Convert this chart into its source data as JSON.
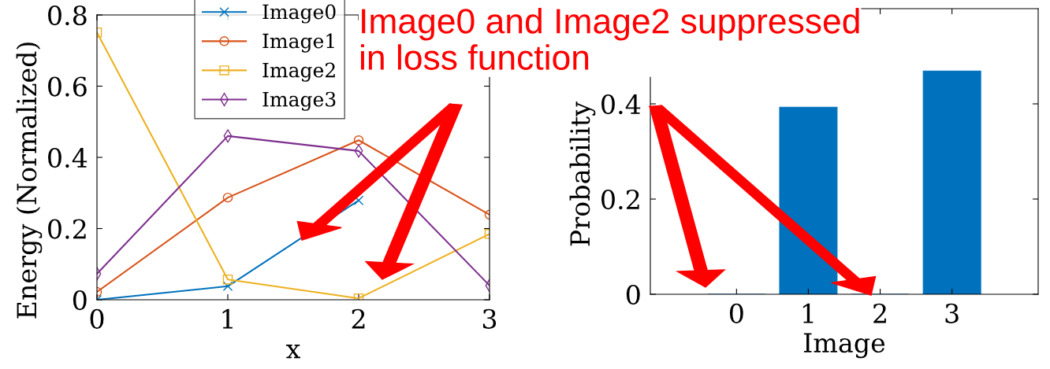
{
  "chart_data": [
    {
      "type": "line",
      "xlabel": "x",
      "ylabel": "Energy (Normalized)",
      "x": [
        0,
        1,
        2,
        3
      ],
      "xlim": [
        0,
        3
      ],
      "xticks": [
        0,
        1,
        2,
        3
      ],
      "ylim": [
        0,
        0.8
      ],
      "yticks": [
        0,
        0.2,
        0.4,
        0.6,
        0.8
      ],
      "legend": "top",
      "grid": false,
      "annotations": [
        "Image0 and Image2 suppressed\nin loss function"
      ],
      "series": [
        {
          "name": "Image0",
          "color": "#0072bd",
          "marker": "cross",
          "values": [
            0,
            0.038,
            0.279,
            null
          ]
        },
        {
          "name": "Image1",
          "color": "#d95319",
          "marker": "circle",
          "values": [
            0.022,
            0.287,
            0.448,
            0.239
          ]
        },
        {
          "name": "Image2",
          "color": "#edb120",
          "marker": "square",
          "values": [
            0.751,
            0.057,
            0.004,
            0.185
          ]
        },
        {
          "name": "Image3",
          "color": "#7e2f8e",
          "marker": "diamond",
          "values": [
            0.073,
            0.46,
            0.418,
            0.04
          ]
        }
      ]
    },
    {
      "type": "bar",
      "xlabel": "Image",
      "ylabel": "Probability",
      "x": [
        0,
        1,
        2,
        3
      ],
      "xlim": [
        -1.2,
        4.2
      ],
      "xticks": [
        0,
        1,
        2,
        3
      ],
      "ylim": [
        0,
        0.6
      ],
      "yticks": [
        0,
        0.2,
        0.4
      ],
      "grid": false,
      "series": [
        {
          "color": "#0072bd",
          "values": [
            0,
            0.393,
            0,
            0.469
          ]
        }
      ]
    }
  ]
}
